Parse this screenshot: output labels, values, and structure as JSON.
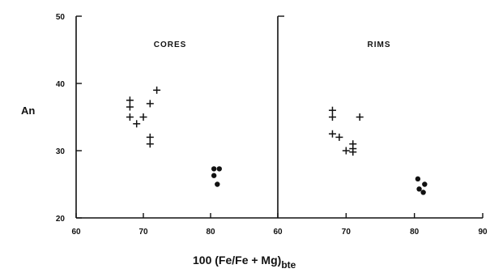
{
  "chart_data": {
    "type": "scatter",
    "ylabel": "An",
    "xlabel_main": "100 (Fe/Fe + Mg)",
    "xlabel_sub": "bte",
    "ylim": [
      20,
      50
    ],
    "yticks": [
      "20",
      "30",
      "40",
      "50"
    ],
    "panels": [
      {
        "title": "CORES",
        "xlim": [
          60,
          90
        ],
        "xticks": [
          "60",
          "70",
          "80"
        ],
        "series": [
          {
            "marker": "plus",
            "points": [
              [
                68,
                37.5
              ],
              [
                68,
                36.5
              ],
              [
                68,
                35
              ],
              [
                69,
                34
              ],
              [
                70,
                35
              ],
              [
                71,
                37
              ],
              [
                72,
                39
              ],
              [
                71,
                32
              ],
              [
                71,
                31
              ]
            ]
          },
          {
            "marker": "dot",
            "points": [
              [
                80.5,
                27.3
              ],
              [
                81.3,
                27.3
              ],
              [
                80.5,
                26.3
              ],
              [
                81,
                25
              ]
            ]
          }
        ]
      },
      {
        "title": "RIMS",
        "xlim": [
          60,
          90
        ],
        "xticks": [
          "60",
          "70",
          "80",
          "90"
        ],
        "series": [
          {
            "marker": "plus",
            "points": [
              [
                68,
                36
              ],
              [
                68,
                35
              ],
              [
                68,
                32.5
              ],
              [
                69,
                32
              ],
              [
                70,
                30
              ],
              [
                71,
                31
              ],
              [
                71,
                30.3
              ],
              [
                71,
                29.8
              ],
              [
                72,
                35
              ]
            ]
          },
          {
            "marker": "dot",
            "points": [
              [
                80.5,
                25.8
              ],
              [
                81.5,
                25
              ],
              [
                80.7,
                24.3
              ],
              [
                81.3,
                23.8
              ]
            ]
          }
        ]
      }
    ]
  }
}
